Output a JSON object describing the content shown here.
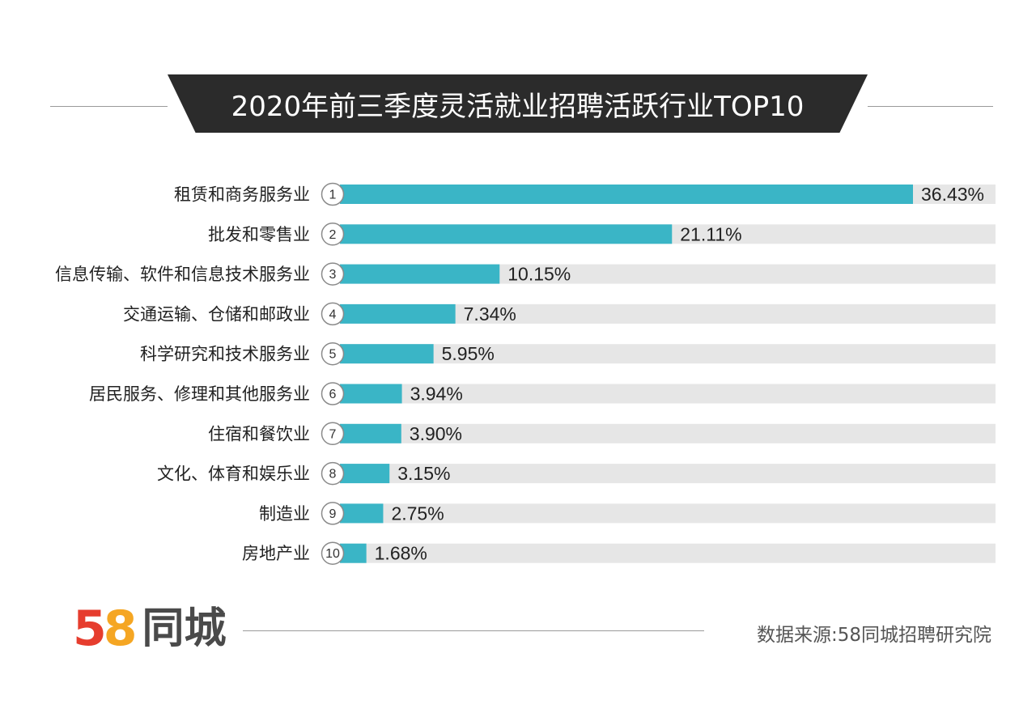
{
  "header": {
    "title": "2020年前三季度灵活就业招聘活跃行业TOP10"
  },
  "chart_data": {
    "type": "bar",
    "orientation": "horizontal",
    "title": "2020年前三季度灵活就业招聘活跃行业TOP10",
    "categories": [
      "租赁和商务服务业",
      "批发和零售业",
      "信息传输、软件和信息技术服务业",
      "交通运输、仓储和邮政业",
      "科学研究和技术服务业",
      "居民服务、修理和其他服务业",
      "住宿和餐饮业",
      "文化、体育和娱乐业",
      "制造业",
      "房地产业"
    ],
    "ranks": [
      "1",
      "2",
      "3",
      "4",
      "5",
      "6",
      "7",
      "8",
      "9",
      "10"
    ],
    "values": [
      36.43,
      21.11,
      10.15,
      7.34,
      5.95,
      3.94,
      3.9,
      3.15,
      2.75,
      1.68
    ],
    "value_labels": [
      "36.43%",
      "21.11%",
      "10.15%",
      "7.34%",
      "5.95%",
      "3.94%",
      "3.90%",
      "3.15%",
      "2.75%",
      "1.68%"
    ],
    "bar_color": "#3ab5c6",
    "track_color": "#e6e6e6",
    "grid": false,
    "legend": "none"
  },
  "footer": {
    "logo_number_5": "5",
    "logo_number_8": "8",
    "logo_text": "同城",
    "source": "数据来源:58同城招聘研究院"
  },
  "colors": {
    "banner": "#2b2b2b",
    "logo_red": "#e63d2e",
    "logo_orange": "#f5a623",
    "logo_blue": "#2d8cd6"
  }
}
